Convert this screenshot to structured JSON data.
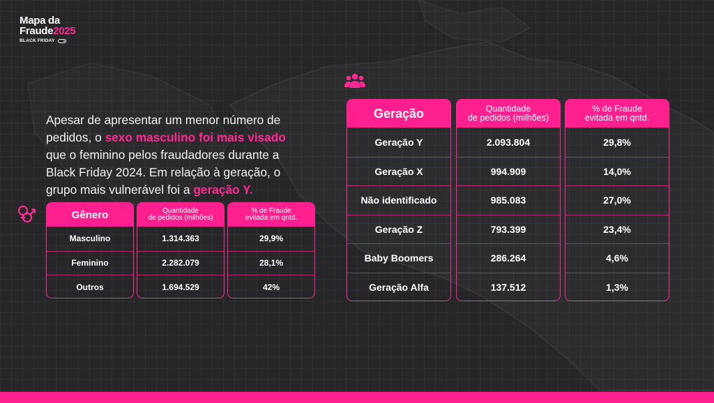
{
  "brand": {
    "line1": "Mapa da",
    "line2": "Fraude",
    "year": "2025",
    "subtitle": "BLACK FRIDAY"
  },
  "intro": {
    "part1": "Apesar de apresentar um menor número de pedidos, o ",
    "highlight1": "sexo masculino foi mais visado",
    "part2": " que o feminino pelos fraudadores durante a Black Friday 2024. Em relação à geração, o grupo mais vulnerável foi a ",
    "highlight2": "geração Y."
  },
  "icons": {
    "people": "people-group-icon",
    "gender": "gender-symbols-icon"
  },
  "colors": {
    "accent": "#ff1f8e",
    "background": "#262528"
  },
  "gender_table": {
    "headers": [
      "Gênero",
      "Quantidade\nde pedidos (milhões)",
      "% de Fraude\nevitada em qntd."
    ],
    "rows": [
      [
        "Masculino",
        "1.314.363",
        "29,9%"
      ],
      [
        "Feminino",
        "2.282.079",
        "28,1%"
      ],
      [
        "Outros",
        "1.694.529",
        "42%"
      ]
    ]
  },
  "generation_table": {
    "headers": [
      "Geração",
      "Quantidade\nde pedidos (milhões)",
      "% de Fraude\nevitada em qntd."
    ],
    "rows": [
      [
        "Geração Y",
        "2.093.804",
        "29,8%"
      ],
      [
        "Geração X",
        "994.909",
        "14,0%"
      ],
      [
        "Não identificado",
        "985.083",
        "27,0%"
      ],
      [
        "Geração Z",
        "793.399",
        "23,4%"
      ],
      [
        "Baby Boomers",
        "286.264",
        "4,6%"
      ],
      [
        "Geração Alfa",
        "137.512",
        "1,3%"
      ]
    ]
  }
}
